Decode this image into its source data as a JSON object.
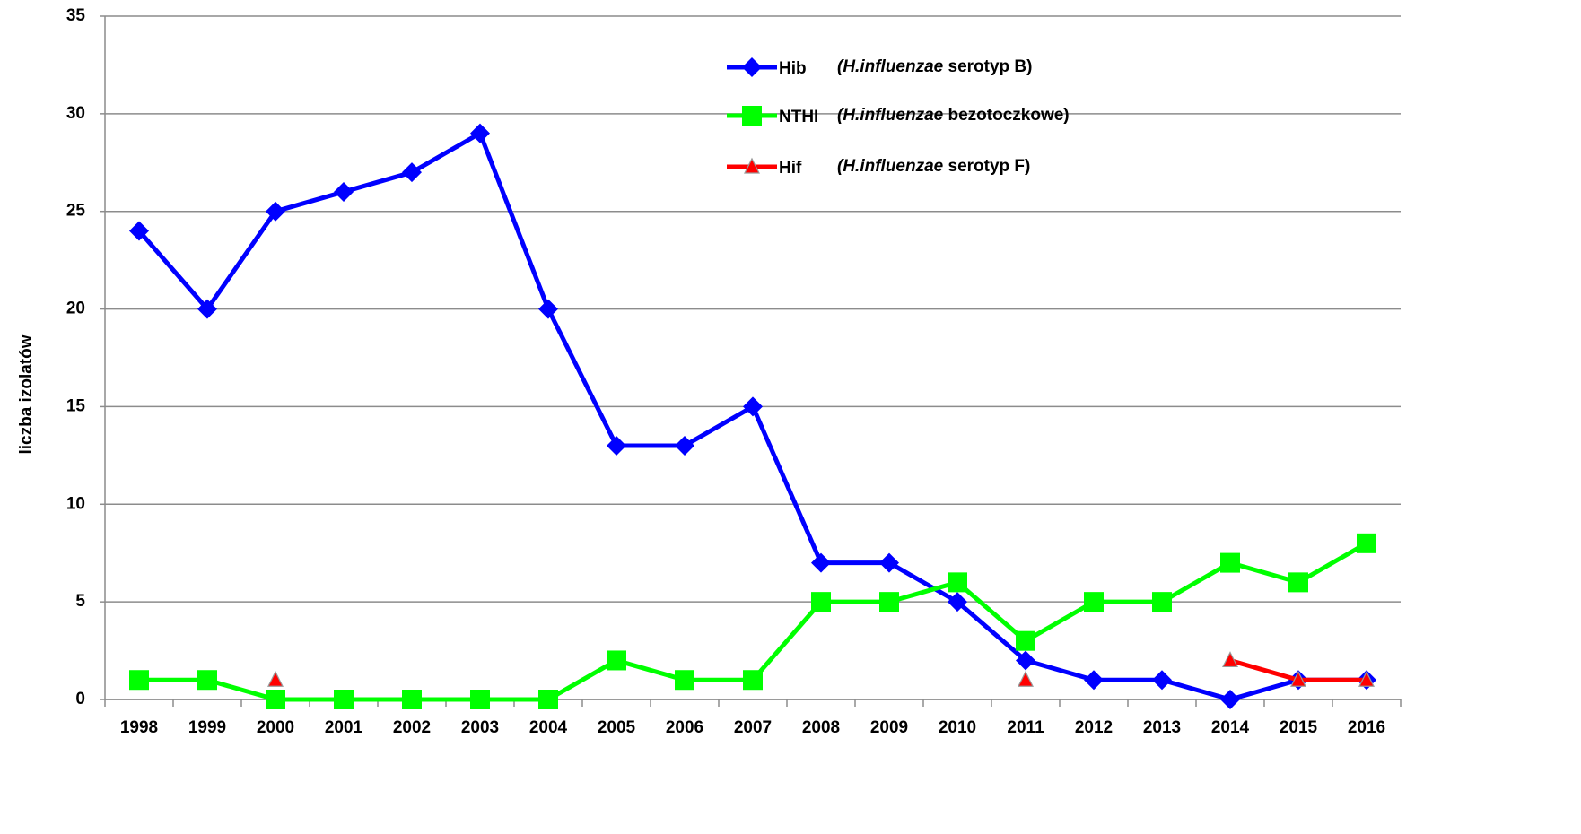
{
  "chart_data": {
    "type": "line",
    "y_axis_label": "liczba izolatów",
    "categories": [
      "1998",
      "1999",
      "2000",
      "2001",
      "2002",
      "2003",
      "2004",
      "2005",
      "2006",
      "2007",
      "2008",
      "2009",
      "2010",
      "2011",
      "2012",
      "2013",
      "2014",
      "2015",
      "2016"
    ],
    "series": [
      {
        "name": "Hib",
        "description_italic": "(H.influenzae",
        "description": " serotyp B)",
        "color": "#0000ff",
        "marker": "diamond",
        "values": [
          24,
          20,
          25,
          26,
          27,
          29,
          20,
          13,
          13,
          15,
          7,
          7,
          5,
          2,
          1,
          1,
          0,
          1,
          1
        ]
      },
      {
        "name": "NTHI",
        "description_italic": "(H.influenzae",
        "description": " bezotoczkowe)",
        "color": "#00ff00",
        "marker": "square",
        "values": [
          1,
          1,
          0,
          0,
          0,
          0,
          0,
          2,
          1,
          1,
          5,
          5,
          6,
          3,
          5,
          5,
          7,
          6,
          8
        ]
      },
      {
        "name": "Hif",
        "description_italic": "(H.influenzae",
        "description": " serotyp F)",
        "color": "#ff0000",
        "marker": "triangle",
        "values": [
          null,
          null,
          1,
          null,
          null,
          null,
          null,
          null,
          null,
          null,
          null,
          null,
          null,
          1,
          null,
          null,
          2,
          1,
          1
        ]
      }
    ],
    "ylim": [
      0,
      35
    ],
    "yticks": [
      0,
      5,
      10,
      15,
      20,
      25,
      30,
      35
    ],
    "grid": true
  }
}
